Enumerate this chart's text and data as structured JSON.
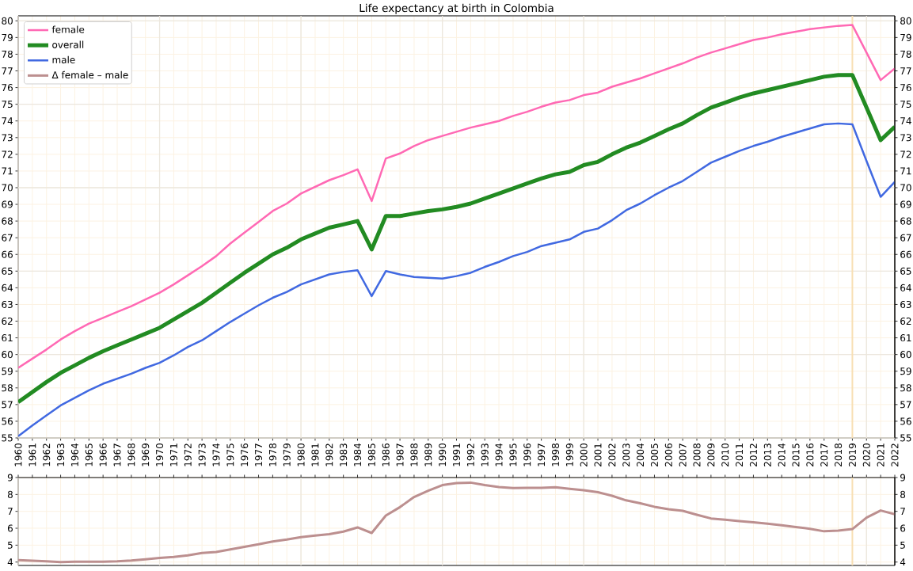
{
  "chart_data": [
    {
      "type": "line",
      "title": "Life expectancy at birth in Colombia",
      "x": [
        1960,
        1961,
        1962,
        1963,
        1964,
        1965,
        1966,
        1967,
        1968,
        1969,
        1970,
        1971,
        1972,
        1973,
        1974,
        1975,
        1976,
        1977,
        1978,
        1979,
        1980,
        1981,
        1982,
        1983,
        1984,
        1985,
        1986,
        1987,
        1988,
        1989,
        1990,
        1991,
        1992,
        1993,
        1994,
        1995,
        1996,
        1997,
        1998,
        1999,
        2000,
        2001,
        2002,
        2003,
        2004,
        2005,
        2006,
        2007,
        2008,
        2009,
        2010,
        2011,
        2012,
        2013,
        2014,
        2015,
        2016,
        2017,
        2018,
        2019,
        2020,
        2021,
        2022
      ],
      "series": [
        {
          "name": "female",
          "color": "#ff69b4",
          "values": [
            59.2,
            59.75,
            60.3,
            60.9,
            61.4,
            61.85,
            62.2,
            62.55,
            62.9,
            63.3,
            63.7,
            64.2,
            64.75,
            65.3,
            65.9,
            66.65,
            67.3,
            67.95,
            68.6,
            69.05,
            69.65,
            70.05,
            70.45,
            70.75,
            71.1,
            69.2,
            71.75,
            72.05,
            72.5,
            72.85,
            73.1,
            73.35,
            73.6,
            73.8,
            74.0,
            74.3,
            74.55,
            74.85,
            75.1,
            75.25,
            75.55,
            75.7,
            76.05,
            76.3,
            76.55,
            76.85,
            77.15,
            77.45,
            77.8,
            78.1,
            78.35,
            78.6,
            78.85,
            79.0,
            79.2,
            79.35,
            79.5,
            79.6,
            79.7,
            79.75,
            78.1,
            76.45,
            77.15
          ]
        },
        {
          "name": "overall",
          "color": "#228b22",
          "values": [
            57.15,
            57.75,
            58.35,
            58.9,
            59.35,
            59.8,
            60.2,
            60.55,
            60.9,
            61.25,
            61.6,
            62.1,
            62.6,
            63.1,
            63.7,
            64.3,
            64.9,
            65.45,
            66.0,
            66.4,
            66.9,
            67.25,
            67.6,
            67.8,
            68.0,
            66.3,
            68.3,
            68.3,
            68.45,
            68.6,
            68.7,
            68.85,
            69.05,
            69.35,
            69.65,
            69.95,
            70.25,
            70.55,
            70.8,
            70.95,
            71.35,
            71.55,
            72.0,
            72.4,
            72.7,
            73.1,
            73.5,
            73.85,
            74.35,
            74.8,
            75.1,
            75.4,
            75.65,
            75.85,
            76.05,
            76.25,
            76.45,
            76.65,
            76.75,
            76.75,
            74.8,
            72.85,
            73.65
          ]
        },
        {
          "name": "male",
          "color": "#4169e1",
          "values": [
            55.1,
            55.75,
            56.35,
            56.95,
            57.4,
            57.85,
            58.25,
            58.55,
            58.85,
            59.2,
            59.5,
            59.95,
            60.45,
            60.85,
            61.4,
            61.95,
            62.45,
            62.95,
            63.4,
            63.75,
            64.2,
            64.5,
            64.8,
            64.95,
            65.05,
            63.5,
            65.0,
            64.8,
            64.65,
            64.6,
            64.55,
            64.7,
            64.9,
            65.25,
            65.55,
            65.9,
            66.15,
            66.5,
            66.7,
            66.9,
            67.35,
            67.55,
            68.05,
            68.65,
            69.05,
            69.55,
            70.0,
            70.4,
            70.95,
            71.5,
            71.85,
            72.2,
            72.5,
            72.75,
            73.05,
            73.3,
            73.55,
            73.8,
            73.85,
            73.8,
            71.6,
            69.45,
            70.35
          ]
        }
      ],
      "xlim": [
        1960,
        2022
      ],
      "xticks": [
        1960,
        1961,
        1962,
        1963,
        1964,
        1965,
        1966,
        1967,
        1968,
        1969,
        1970,
        1971,
        1972,
        1973,
        1974,
        1975,
        1976,
        1977,
        1978,
        1979,
        1980,
        1981,
        1982,
        1983,
        1984,
        1985,
        1986,
        1987,
        1988,
        1989,
        1990,
        1991,
        1992,
        1993,
        1994,
        1995,
        1996,
        1997,
        1998,
        1999,
        2000,
        2001,
        2002,
        2003,
        2004,
        2005,
        2006,
        2007,
        2008,
        2009,
        2010,
        2011,
        2012,
        2013,
        2014,
        2015,
        2016,
        2017,
        2018,
        2019,
        2020,
        2021,
        2022
      ],
      "ylim": [
        55,
        80.3
      ],
      "yticks": [
        55,
        56,
        57,
        58,
        59,
        60,
        61,
        62,
        63,
        64,
        65,
        66,
        67,
        68,
        69,
        70,
        71,
        72,
        73,
        74,
        75,
        76,
        77,
        78,
        79,
        80
      ],
      "y2lim": [
        55,
        80.3
      ],
      "y2ticks": [
        55,
        56,
        57,
        58,
        59,
        60,
        61,
        62,
        63,
        64,
        65,
        66,
        67,
        68,
        69,
        70,
        71,
        72,
        73,
        74,
        75,
        76,
        77,
        78,
        79,
        80
      ],
      "grid": true,
      "legend": "top left",
      "ref_lines": [
        {
          "axis": "x",
          "value": 2019,
          "color": "#f8dfb4"
        }
      ]
    },
    {
      "type": "line",
      "x": [
        1960,
        1961,
        1962,
        1963,
        1964,
        1965,
        1966,
        1967,
        1968,
        1969,
        1970,
        1971,
        1972,
        1973,
        1974,
        1975,
        1976,
        1977,
        1978,
        1979,
        1980,
        1981,
        1982,
        1983,
        1984,
        1985,
        1986,
        1987,
        1988,
        1989,
        1990,
        1991,
        1992,
        1993,
        1994,
        1995,
        1996,
        1997,
        1998,
        1999,
        2000,
        2001,
        2002,
        2003,
        2004,
        2005,
        2006,
        2007,
        2008,
        2009,
        2010,
        2011,
        2012,
        2013,
        2014,
        2015,
        2016,
        2017,
        2018,
        2019,
        2020,
        2021,
        2022
      ],
      "series": [
        {
          "name": "Δ female – male",
          "color": "#bc8f8f",
          "values": [
            4.12,
            4.08,
            4.04,
            4.0,
            4.02,
            4.02,
            4.02,
            4.04,
            4.09,
            4.16,
            4.24,
            4.3,
            4.4,
            4.54,
            4.6,
            4.75,
            4.9,
            5.05,
            5.22,
            5.33,
            5.47,
            5.57,
            5.65,
            5.8,
            6.05,
            5.72,
            6.75,
            7.25,
            7.85,
            8.22,
            8.55,
            8.67,
            8.7,
            8.55,
            8.44,
            8.38,
            8.39,
            8.39,
            8.42,
            8.33,
            8.25,
            8.13,
            7.92,
            7.65,
            7.48,
            7.27,
            7.13,
            7.03,
            6.8,
            6.58,
            6.5,
            6.42,
            6.35,
            6.27,
            6.18,
            6.07,
            5.97,
            5.82,
            5.86,
            5.95,
            6.63,
            7.05,
            6.83
          ]
        }
      ],
      "xlim": [
        1960,
        2022
      ],
      "xticks": [
        1960,
        1961,
        1962,
        1963,
        1964,
        1965,
        1966,
        1967,
        1968,
        1969,
        1970,
        1971,
        1972,
        1973,
        1974,
        1975,
        1976,
        1977,
        1978,
        1979,
        1980,
        1981,
        1982,
        1983,
        1984,
        1985,
        1986,
        1987,
        1988,
        1989,
        1990,
        1991,
        1992,
        1993,
        1994,
        1995,
        1996,
        1997,
        1998,
        1999,
        2000,
        2001,
        2002,
        2003,
        2004,
        2005,
        2006,
        2007,
        2008,
        2009,
        2010,
        2011,
        2012,
        2013,
        2014,
        2015,
        2016,
        2017,
        2018,
        2019,
        2020,
        2021,
        2022
      ],
      "ylim": [
        3.8,
        9
      ],
      "yticks": [
        4,
        5,
        6,
        7,
        8,
        9
      ],
      "y2lim": [
        3.8,
        9
      ],
      "y2ticks": [
        4,
        5,
        6,
        7,
        8,
        9
      ],
      "grid": true,
      "tick_labels": "y",
      "ref_lines": [
        {
          "axis": "x",
          "value": 2019,
          "color": "#f8dfb4"
        }
      ]
    }
  ]
}
